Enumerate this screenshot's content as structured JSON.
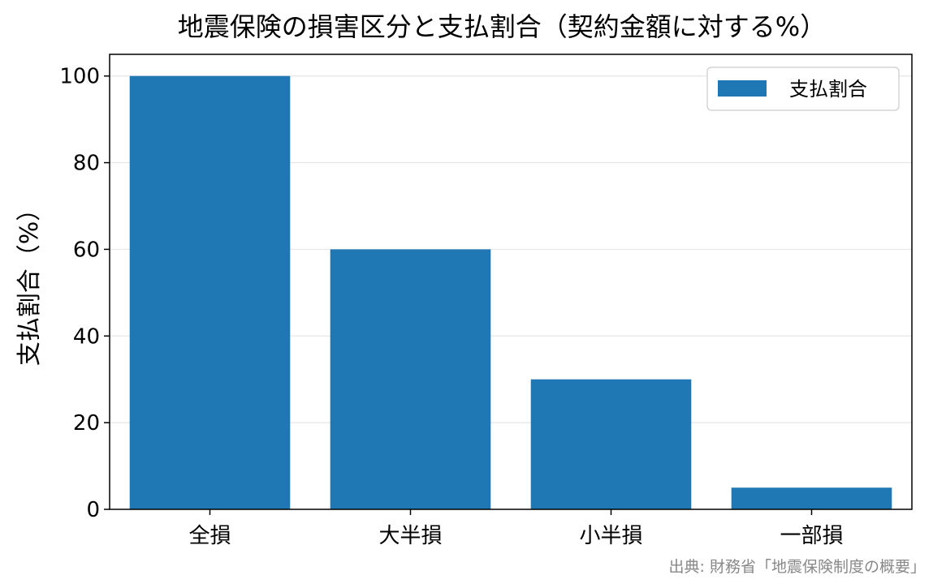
{
  "chart_data": {
    "type": "bar",
    "title": "地震保険の損害区分と支払割合（契約金額に対する%）",
    "xlabel": "",
    "ylabel": "支払割合（%）",
    "categories": [
      "全損",
      "大半損",
      "小半損",
      "一部損"
    ],
    "series": [
      {
        "name": "支払割合",
        "values": [
          100,
          60,
          30,
          5
        ],
        "color": "#1f77b4"
      }
    ],
    "ylim": [
      0,
      105
    ],
    "yticks": [
      0,
      20,
      40,
      60,
      80,
      100
    ],
    "grid": "y-only",
    "legend": "top-right",
    "source": "出典: 財務省「地震保険制度の概要」"
  }
}
